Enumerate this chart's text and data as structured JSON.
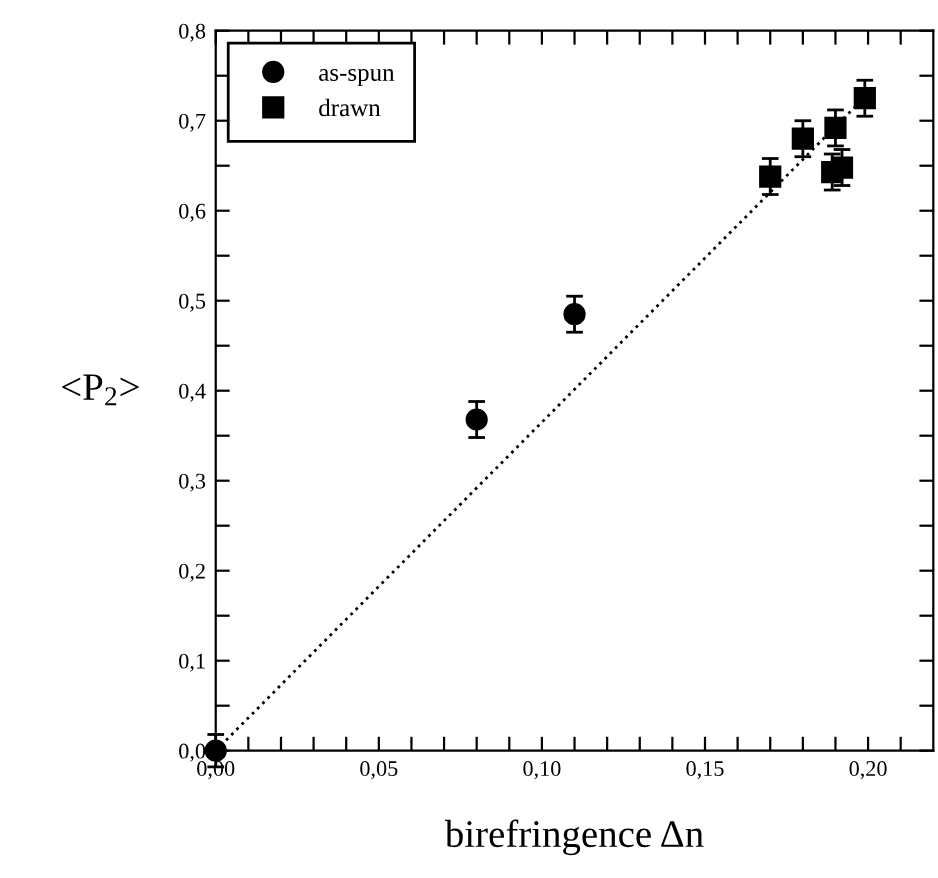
{
  "chart_data": {
    "type": "scatter",
    "xlabel": "birefringence Δn",
    "ylabel": "<P$_{2}$>",
    "series": [
      {
        "name": "as-spun",
        "marker": "circle",
        "color": "#000000",
        "x": [
          0.0,
          0.08,
          0.11
        ],
        "values": [
          0.0,
          0.368,
          0.485
        ],
        "errors": [
          0.018,
          0.02,
          0.02
        ]
      },
      {
        "name": "drawn",
        "marker": "square",
        "color": "#000000",
        "x": [
          0.17,
          0.18,
          0.189,
          0.19,
          0.192,
          0.199
        ],
        "values": [
          0.638,
          0.68,
          0.643,
          0.692,
          0.648,
          0.725
        ],
        "errors": [
          0.02,
          0.02,
          0.02,
          0.02,
          0.02,
          0.02
        ]
      },
      {
        "type": "line",
        "line_style": "dotted",
        "color": "#000000",
        "x": [
          0.0,
          0.2
        ],
        "values": [
          0.0,
          0.73
        ]
      }
    ],
    "xlim": [
      0.0,
      0.22
    ],
    "ylim": [
      0.0,
      0.8
    ],
    "xticks": [
      {
        "value": 0.0,
        "label": "0,00"
      },
      {
        "value": 0.01,
        "label": null
      },
      {
        "value": 0.02,
        "label": null
      },
      {
        "value": 0.03,
        "label": null
      },
      {
        "value": 0.04,
        "label": null
      },
      {
        "value": 0.05,
        "label": "0,05"
      },
      {
        "value": 0.06,
        "label": null
      },
      {
        "value": 0.07,
        "label": null
      },
      {
        "value": 0.08,
        "label": null
      },
      {
        "value": 0.09,
        "label": null
      },
      {
        "value": 0.1,
        "label": "0,10"
      },
      {
        "value": 0.11,
        "label": null
      },
      {
        "value": 0.12,
        "label": null
      },
      {
        "value": 0.13,
        "label": null
      },
      {
        "value": 0.14,
        "label": null
      },
      {
        "value": 0.15,
        "label": "0,15"
      },
      {
        "value": 0.16,
        "label": null
      },
      {
        "value": 0.17,
        "label": null
      },
      {
        "value": 0.18,
        "label": null
      },
      {
        "value": 0.19,
        "label": null
      },
      {
        "value": 0.2,
        "label": "0,20"
      },
      {
        "value": 0.21,
        "label": null
      }
    ],
    "yticks": [
      {
        "value": 0.0,
        "label": "0,0"
      },
      {
        "value": 0.05,
        "label": null
      },
      {
        "value": 0.1,
        "label": "0,1"
      },
      {
        "value": 0.15,
        "label": null
      },
      {
        "value": 0.2,
        "label": "0,2"
      },
      {
        "value": 0.25,
        "label": null
      },
      {
        "value": 0.3,
        "label": "0,3"
      },
      {
        "value": 0.35,
        "label": null
      },
      {
        "value": 0.4,
        "label": "0,4"
      },
      {
        "value": 0.45,
        "label": null
      },
      {
        "value": 0.5,
        "label": "0,5"
      },
      {
        "value": 0.55,
        "label": null
      },
      {
        "value": 0.6,
        "label": "0,6"
      },
      {
        "value": 0.65,
        "label": null
      },
      {
        "value": 0.7,
        "label": "0,7"
      },
      {
        "value": 0.75,
        "label": null
      },
      {
        "value": 0.8,
        "label": "0,8"
      }
    ],
    "grid": false,
    "legend": "top left"
  }
}
